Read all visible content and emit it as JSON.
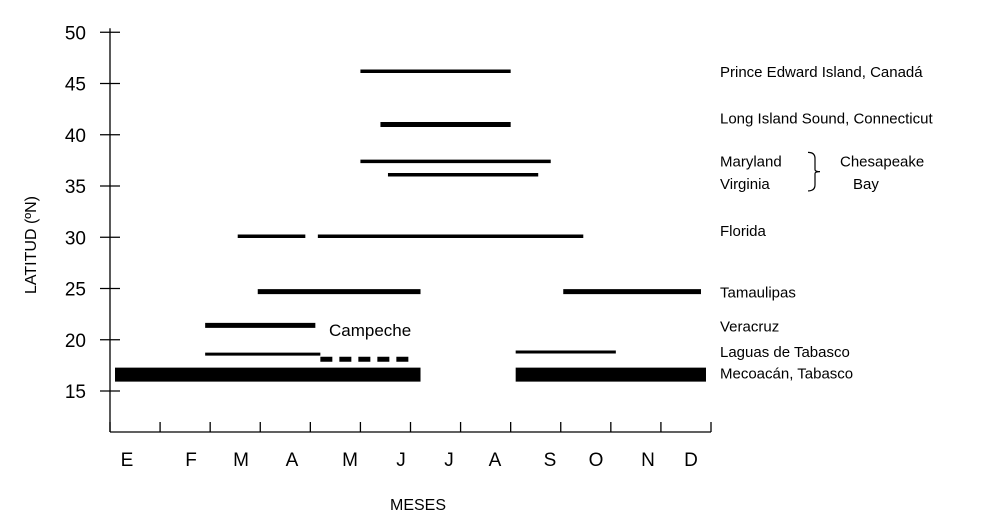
{
  "chart_data": {
    "type": "range-bar",
    "xlabel": "MESES",
    "ylabel": "LATITUD (ºN)",
    "months": [
      "E",
      "F",
      "M",
      "A",
      "M",
      "J",
      "J",
      "A",
      "S",
      "O",
      "N",
      "D"
    ],
    "yticks": [
      15,
      20,
      25,
      30,
      35,
      40,
      45,
      50
    ],
    "ylim": [
      11,
      51
    ],
    "xlim": [
      0,
      12
    ],
    "site_labels": [
      {
        "id": "pei",
        "text": "Prince Edward Island, Canadá",
        "lat": 46.2
      },
      {
        "id": "lis",
        "text": "Long Island Sound, Connecticut",
        "lat": 41.7
      },
      {
        "id": "md",
        "text": "Maryland",
        "lat": 37.5
      },
      {
        "id": "va",
        "text": "Virginia",
        "lat": 35.3
      },
      {
        "id": "fl",
        "text": "Florida",
        "lat": 30.7
      },
      {
        "id": "tam",
        "text": "Tamaulipas",
        "lat": 24.7
      },
      {
        "id": "ver",
        "text": "Veracruz",
        "lat": 21.4
      },
      {
        "id": "lag",
        "text": "Laguas de Tabasco",
        "lat": 18.9
      },
      {
        "id": "mec",
        "text": "Mecoacán, Tabasco",
        "lat": 16.8
      }
    ],
    "bay_label_1": "Chesapeake",
    "bay_label_2": "Bay",
    "annotation": "Campeche",
    "series": [
      {
        "site": "Prince Edward Island",
        "lat": 46.2,
        "start": 5.0,
        "end": 8.0,
        "weight": "medium",
        "style": "solid"
      },
      {
        "site": "Long Island Sound",
        "lat": 41.0,
        "start": 5.4,
        "end": 8.0,
        "weight": "thick",
        "style": "solid"
      },
      {
        "site": "Maryland",
        "lat": 37.4,
        "start": 5.0,
        "end": 8.8,
        "weight": "medium",
        "style": "solid"
      },
      {
        "site": "Virginia",
        "lat": 36.1,
        "start": 5.55,
        "end": 8.55,
        "weight": "medium",
        "style": "solid"
      },
      {
        "site": "Florida",
        "lat": 30.1,
        "start": 2.55,
        "end": 3.9,
        "weight": "medium",
        "style": "solid"
      },
      {
        "site": "Florida",
        "lat": 30.1,
        "start": 4.15,
        "end": 9.45,
        "weight": "medium",
        "style": "solid"
      },
      {
        "site": "Tamaulipas",
        "lat": 24.7,
        "start": 2.95,
        "end": 6.2,
        "weight": "thick",
        "style": "solid"
      },
      {
        "site": "Tamaulipas",
        "lat": 24.7,
        "start": 9.05,
        "end": 11.8,
        "weight": "thick",
        "style": "solid"
      },
      {
        "site": "Veracruz",
        "lat": 21.4,
        "start": 1.9,
        "end": 4.1,
        "weight": "thick",
        "style": "solid"
      },
      {
        "site": "Laguas de Tabasco",
        "lat": 18.6,
        "start": 1.9,
        "end": 4.2,
        "weight": "thin",
        "style": "solid"
      },
      {
        "site": "Laguas de Tabasco",
        "lat": 18.8,
        "start": 8.1,
        "end": 10.1,
        "weight": "thin",
        "style": "solid"
      },
      {
        "site": "Campeche",
        "lat": 18.1,
        "start": 4.2,
        "end": 6.0,
        "weight": "thick",
        "style": "dashed"
      },
      {
        "site": "Mecoacán, Tabasco",
        "lat": 16.6,
        "start": 0.1,
        "end": 6.2,
        "weight": "band",
        "style": "solid"
      },
      {
        "site": "Mecoacán, Tabasco",
        "lat": 16.6,
        "start": 8.1,
        "end": 11.9,
        "weight": "band",
        "style": "solid"
      }
    ]
  }
}
